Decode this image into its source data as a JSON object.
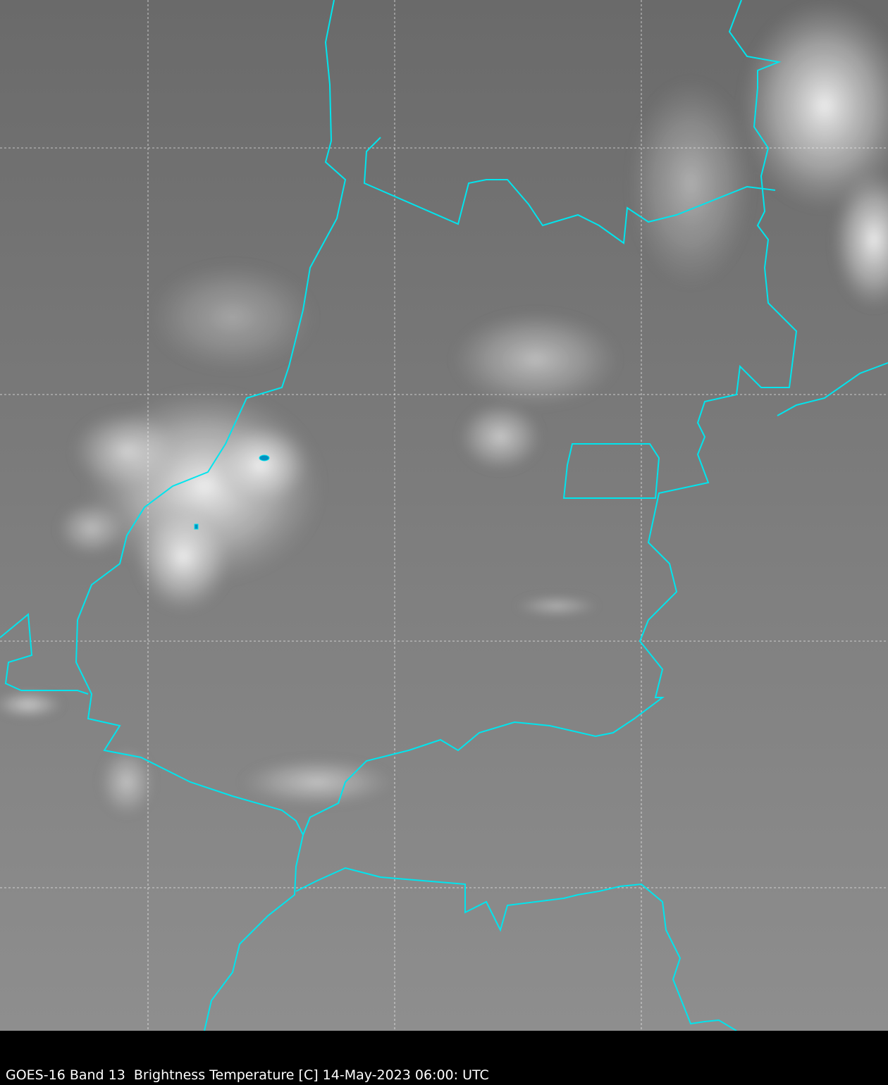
{
  "caption": "GOES-16 Band 13  Brightness Temperature [C] 14-May-2023 06:00: UTC",
  "colors": {
    "border": "#00e5ee",
    "gridline": "#ffffff",
    "background_land": "#7a7a7a",
    "cloud": "#f0f0f0",
    "cold_cloud_top": "#0090c0",
    "footer": "#000000"
  },
  "map": {
    "satellite": "GOES-16",
    "band": 13,
    "gridlines": true,
    "overlay": "state and country borders"
  }
}
